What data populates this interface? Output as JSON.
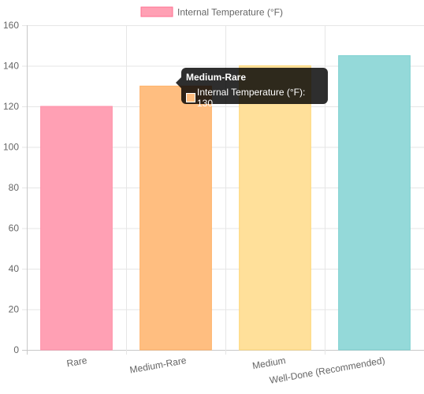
{
  "chart_data": {
    "type": "bar",
    "categories": [
      "Rare",
      "Medium-Rare",
      "Medium",
      "Well-Done (Recommended)"
    ],
    "series": [
      {
        "name": "Internal Temperature (°F)",
        "values": [
          120,
          130,
          140,
          145
        ]
      }
    ],
    "ylim": [
      0,
      160
    ],
    "yticks": [
      0,
      20,
      40,
      60,
      80,
      100,
      120,
      140,
      160
    ],
    "grid": true,
    "legend": "top-center",
    "bar_fill_colors": [
      "#ffa0b4",
      "#ffbe80",
      "#ffe09a",
      "#94d9d9"
    ],
    "bar_border_colors": [
      "#ff8fa8",
      "#ffb066",
      "#ffd878",
      "#7cd0d0"
    ],
    "legend_swatch_fill": "#ffa0b4",
    "legend_swatch_border": "#ff6f91",
    "tooltip": {
      "title": "Medium-Rare",
      "label": "Internal Temperature (°F): 130",
      "swatch_color": "#ffbe80"
    }
  }
}
